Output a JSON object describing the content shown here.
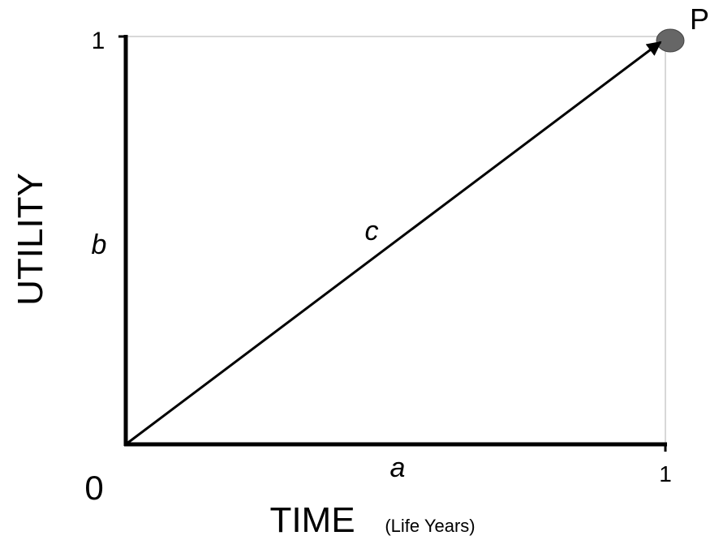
{
  "axes": {
    "y_label": "UTILITY",
    "x_label": "TIME",
    "x_unit": "(Life Years)",
    "origin_label": "0",
    "y_max_label": "1",
    "x_max_label": "1"
  },
  "segments": {
    "x_axis": "a",
    "y_axis": "b",
    "diagonal": "c"
  },
  "point": {
    "label": "P"
  }
}
